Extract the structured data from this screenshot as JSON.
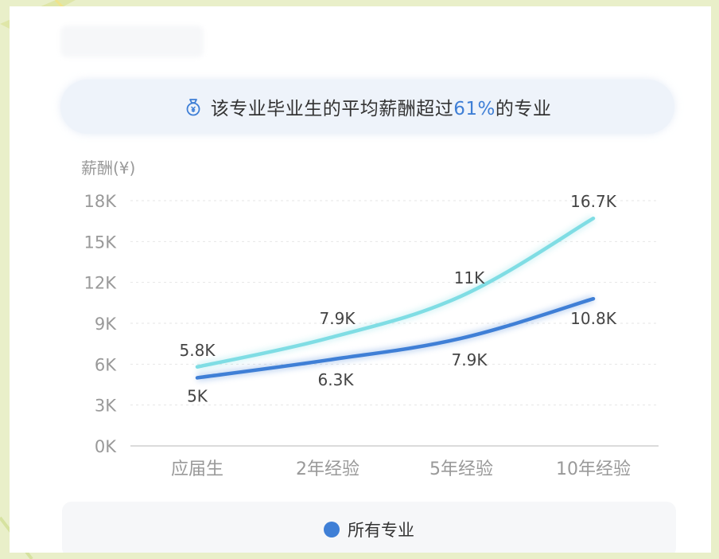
{
  "banner": {
    "prefix": "该专业毕业生的平均薪酬超过",
    "highlight": "61%",
    "suffix": "的专业",
    "icon": "money-bag-icon"
  },
  "legend": {
    "label": "所有专业",
    "color": "#3f7fd6"
  },
  "chart_data": {
    "type": "line",
    "ylabel": "薪酬(¥)",
    "ylim": [
      0,
      18000
    ],
    "y_ticks": [
      "0K",
      "3K",
      "6K",
      "9K",
      "12K",
      "15K",
      "18K"
    ],
    "y_tick_values": [
      0,
      3000,
      6000,
      9000,
      12000,
      15000,
      18000
    ],
    "categories": [
      "应届生",
      "2年经验",
      "5年经验",
      "10年经验"
    ],
    "grid": "horizontal dashed",
    "series": [
      {
        "values": [
          5800,
          7900,
          11000,
          16700
        ],
        "labels": [
          "5.8K",
          "7.9K",
          "11K",
          "16.7K"
        ],
        "color": "#7fdde4"
      },
      {
        "name": "所有专业",
        "values": [
          5000,
          6300,
          7900,
          10800
        ],
        "labels": [
          "5K",
          "6.3K",
          "7.9K",
          "10.8K"
        ],
        "color": "#3f7fd6"
      }
    ]
  }
}
